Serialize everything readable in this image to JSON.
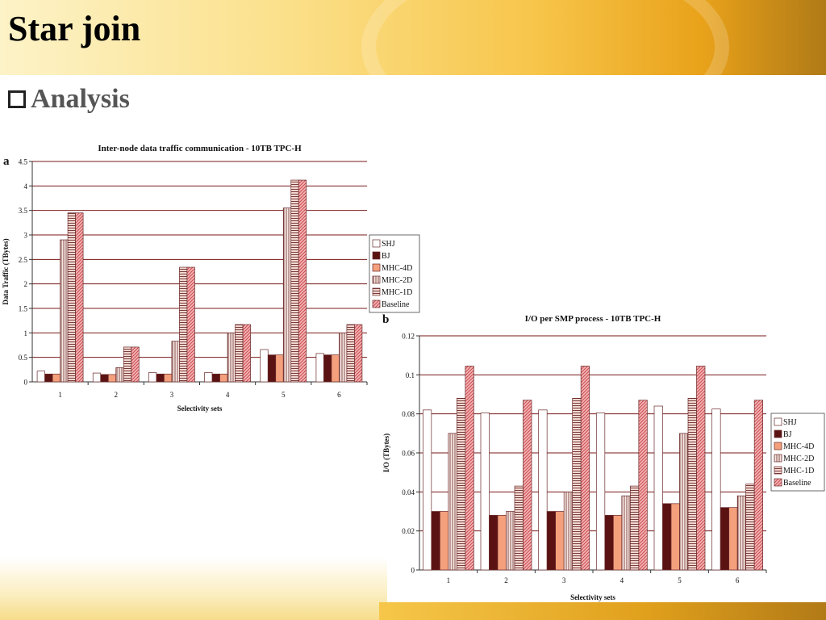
{
  "slide": {
    "title": "Star join",
    "bullet": "Analysis"
  },
  "colors": {
    "grid": "#7a1a1a",
    "SHJ": "#ffffff",
    "BJ": "#5a1212",
    "MHC-4D": "#f4a07c",
    "MHC-2D": "#f7e7e2",
    "MHC-1D": "#f3d8d2",
    "Baseline": "#f4b6b6",
    "stroke": "#6a2a2a"
  },
  "chart_data": [
    {
      "type": "bar",
      "panel_label": "a",
      "title": "Inter-node data traffic communication - 10TB TPC-H",
      "xlabel": "Selectivity sets",
      "ylabel": "Data Traffic (TBytes)",
      "ylim": [
        0,
        4.5
      ],
      "yticks": [
        "0",
        "0.5",
        "1",
        "1.5",
        "2",
        "2.5",
        "3",
        "3.5",
        "4",
        "4.5"
      ],
      "categories": [
        "1",
        "2",
        "3",
        "4",
        "5",
        "6"
      ],
      "grid": true,
      "legend_position": "right",
      "series": [
        {
          "name": "SHJ",
          "values": [
            0.22,
            0.18,
            0.19,
            0.19,
            0.66,
            0.58
          ]
        },
        {
          "name": "BJ",
          "values": [
            0.16,
            0.15,
            0.16,
            0.16,
            0.55,
            0.55
          ]
        },
        {
          "name": "MHC-4D",
          "values": [
            0.16,
            0.15,
            0.16,
            0.16,
            0.55,
            0.55
          ]
        },
        {
          "name": "MHC-2D",
          "values": [
            2.9,
            0.29,
            0.83,
            1.0,
            3.55,
            1.0
          ]
        },
        {
          "name": "MHC-1D",
          "values": [
            3.45,
            0.71,
            2.34,
            1.17,
            4.12,
            1.17
          ]
        },
        {
          "name": "Baseline",
          "values": [
            3.45,
            0.71,
            2.34,
            1.17,
            4.12,
            1.17
          ]
        }
      ]
    },
    {
      "type": "bar",
      "panel_label": "b",
      "title": "I/O  per SMP process  - 10TB TPC-H",
      "xlabel": "Selectivity sets",
      "ylabel": "I/O (TBytes)",
      "ylim": [
        0,
        0.12
      ],
      "yticks": [
        "0",
        "0.02",
        "0.04",
        "0.06",
        "0.08",
        "0.1",
        "0.12"
      ],
      "categories": [
        "1",
        "2",
        "3",
        "4",
        "5",
        "6"
      ],
      "grid": true,
      "legend_position": "right",
      "series": [
        {
          "name": "SHJ",
          "values": [
            0.082,
            0.0805,
            0.082,
            0.0805,
            0.084,
            0.0825
          ]
        },
        {
          "name": "BJ",
          "values": [
            0.03,
            0.028,
            0.03,
            0.028,
            0.034,
            0.032
          ]
        },
        {
          "name": "MHC-4D",
          "values": [
            0.03,
            0.028,
            0.03,
            0.028,
            0.034,
            0.032
          ]
        },
        {
          "name": "MHC-2D",
          "values": [
            0.07,
            0.03,
            0.04,
            0.038,
            0.07,
            0.038
          ]
        },
        {
          "name": "MHC-1D",
          "values": [
            0.088,
            0.043,
            0.088,
            0.043,
            0.088,
            0.044
          ]
        },
        {
          "name": "Baseline",
          "values": [
            0.1045,
            0.087,
            0.1045,
            0.087,
            0.1045,
            0.087
          ]
        }
      ]
    }
  ]
}
